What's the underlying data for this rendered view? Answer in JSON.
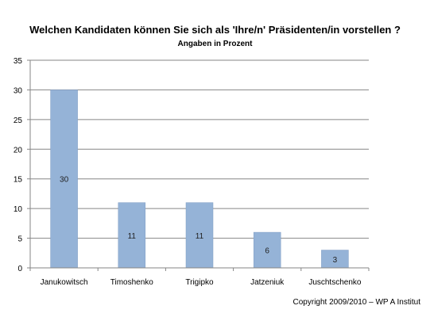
{
  "copyright": "Copyright 2009/2010 – WP A Institut",
  "colors": {
    "bar": "#95b3d7",
    "bar_stroke": "#7f9dc4",
    "axis": "#868686",
    "grid": "#868686"
  },
  "chart_data": {
    "type": "bar",
    "title": "Welchen Kandidaten können Sie sich als 'Ihre/n' Präsidenten/in vorstellen ?",
    "subtitle": "Angaben in Prozent",
    "xlabel": "",
    "ylabel": "",
    "categories": [
      "Janukowitsch",
      "Timoshenko",
      "Trigipko",
      "Jatzeniuk",
      "Juschtschenko"
    ],
    "values": [
      30,
      11,
      11,
      6,
      3
    ],
    "data_labels": [
      "30",
      "11",
      "11",
      "6",
      "3"
    ],
    "ylim": [
      0,
      35
    ],
    "yticks": [
      0,
      5,
      10,
      15,
      20,
      25,
      30,
      35
    ],
    "grid": true,
    "legend": "none"
  }
}
